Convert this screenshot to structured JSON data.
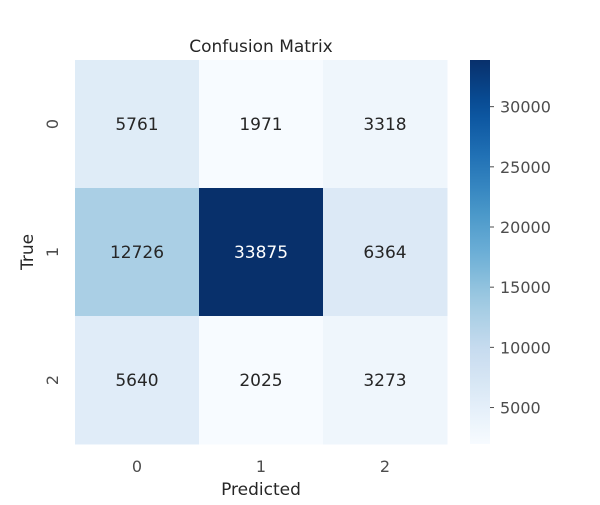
{
  "chart_data": {
    "type": "heatmap",
    "title": "Confusion Matrix",
    "xlabel": "Predicted",
    "ylabel": "True",
    "x_categories": [
      "0",
      "1",
      "2"
    ],
    "y_categories": [
      "0",
      "1",
      "2"
    ],
    "values": [
      [
        5761,
        1971,
        3318
      ],
      [
        12726,
        33875,
        6364
      ],
      [
        5640,
        2025,
        3273
      ]
    ],
    "colormap": "Blues",
    "colorbar": {
      "range": [
        1971,
        33875
      ],
      "ticks": [
        5000,
        10000,
        15000,
        20000,
        25000,
        30000
      ]
    },
    "grid": false
  }
}
